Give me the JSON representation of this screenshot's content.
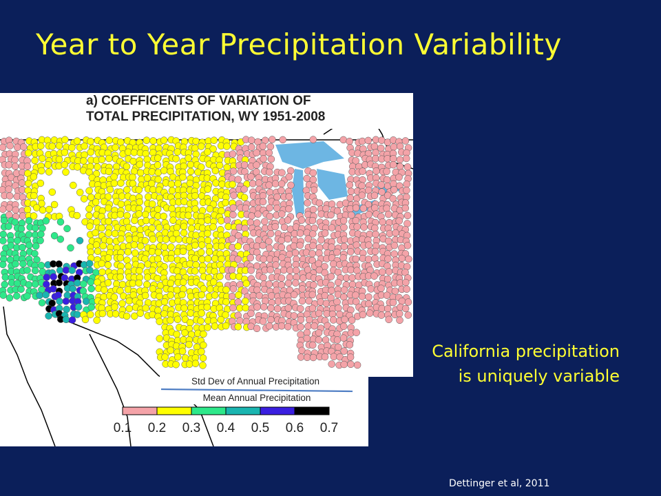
{
  "slide": {
    "title": "Year to Year Precipitation Variability",
    "callout_line1": "California precipitation",
    "callout_line2": "is uniquely variable",
    "citation": "Dettinger et al, 2011"
  },
  "figure": {
    "title_line1": "a) COEFFICENTS OF VARIATION OF",
    "title_line2": "TOTAL PRECIPITATION, WY 1951-2008",
    "formula_numerator": "Std Dev of Annual Precipitation",
    "formula_denominator": "Mean Annual Precipitation",
    "colors": {
      "background": "#0b1f5a",
      "title": "#ffff33",
      "map_water": "#6db6e3",
      "bin_pink": "#f4a3a8",
      "bin_yellow": "#ffff00",
      "bin_green": "#2ee88a",
      "bin_teal": "#1ab5b0",
      "bin_blue": "#3a1fe0",
      "bin_black": "#000000"
    },
    "legend": {
      "ticks": [
        "0.1",
        "0.2",
        "0.3",
        "0.4",
        "0.5",
        "0.6",
        "0.7"
      ],
      "bins": [
        {
          "from": 0.1,
          "to": 0.2,
          "color": "#f4a3a8"
        },
        {
          "from": 0.2,
          "to": 0.3,
          "color": "#ffff00"
        },
        {
          "from": 0.3,
          "to": 0.4,
          "color": "#2ee88a"
        },
        {
          "from": 0.4,
          "to": 0.5,
          "color": "#1ab5b0"
        },
        {
          "from": 0.5,
          "to": 0.6,
          "color": "#3a1fe0"
        },
        {
          "from": 0.6,
          "to": 0.7,
          "color": "#000000"
        }
      ]
    }
  }
}
